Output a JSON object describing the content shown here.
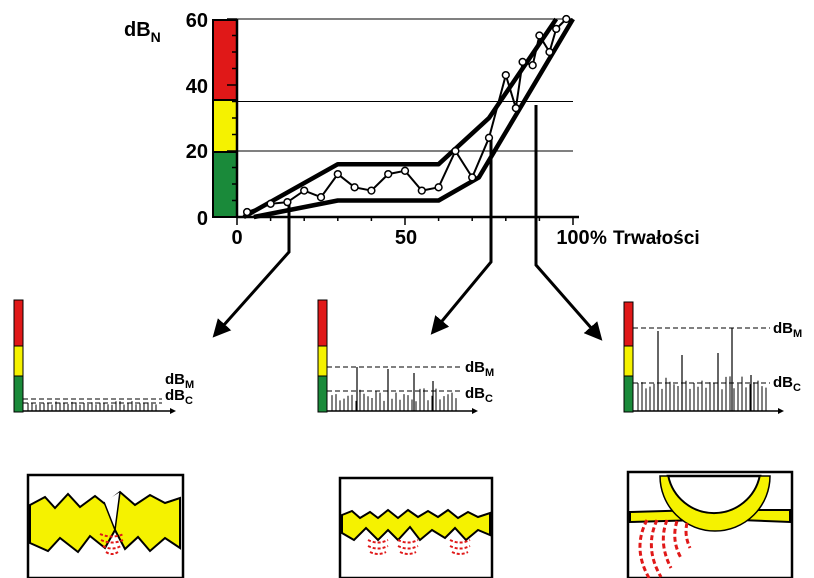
{
  "main_chart": {
    "y_axis_label": "dB",
    "y_axis_label_sub": "N",
    "y_ticks": [
      "0",
      "20",
      "40",
      "60"
    ],
    "x_ticks": [
      "0",
      "50",
      "100"
    ],
    "x_unit": "%",
    "x_axis_label": "Trwałości",
    "ylim": [
      0,
      60
    ],
    "xlim": [
      0,
      100
    ],
    "zone_colors": {
      "green": "#1a8a3a",
      "yellow": "#f5f200",
      "red": "#e01818"
    },
    "zone_bounds_dB": {
      "green": [
        0,
        20
      ],
      "yellow": [
        20,
        35
      ],
      "red": [
        35,
        60
      ]
    },
    "measured_points": [
      [
        3,
        1.5
      ],
      [
        10,
        4
      ],
      [
        15,
        4.5
      ],
      [
        20,
        8
      ],
      [
        25,
        6
      ],
      [
        30,
        13
      ],
      [
        35,
        9
      ],
      [
        40,
        8
      ],
      [
        45,
        13
      ],
      [
        50,
        14
      ],
      [
        55,
        8
      ],
      [
        60,
        9
      ],
      [
        65,
        20
      ],
      [
        70,
        12
      ],
      [
        75,
        24
      ],
      [
        80,
        43
      ],
      [
        83,
        33
      ],
      [
        85,
        47
      ],
      [
        88,
        46
      ],
      [
        90,
        55
      ],
      [
        93,
        50
      ],
      [
        95,
        57
      ],
      [
        98,
        60
      ]
    ],
    "upper_envelope": [
      [
        2,
        0
      ],
      [
        30,
        16
      ],
      [
        60,
        16
      ],
      [
        75,
        30
      ],
      [
        95,
        60
      ]
    ],
    "lower_envelope": [
      [
        5,
        0
      ],
      [
        30,
        5
      ],
      [
        60,
        5
      ],
      [
        72,
        12
      ],
      [
        100,
        60
      ]
    ],
    "callout_x_percent": [
      15,
      75,
      88
    ]
  },
  "small_charts": [
    {
      "m_label": "dB",
      "m_sub": "M",
      "c_label": "dB",
      "c_sub": "C"
    },
    {
      "m_label": "dB",
      "m_sub": "M",
      "c_label": "dB",
      "c_sub": "C"
    },
    {
      "m_label": "dB",
      "m_sub": "M",
      "c_label": "dB",
      "c_sub": "C"
    }
  ]
}
